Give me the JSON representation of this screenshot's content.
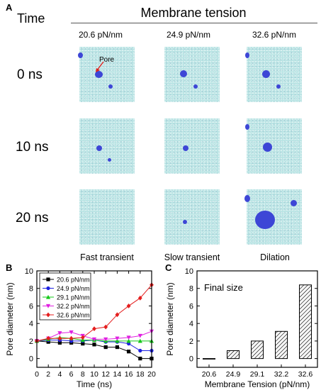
{
  "panel_a": {
    "letter": "A",
    "time_header": "Time",
    "membrane_header": "Membrane tension",
    "tensions": [
      "20.6 pN/nm",
      "24.9 pN/nm",
      "32.6 pN/nm"
    ],
    "rows": [
      "0 ns",
      "10 ns",
      "20 ns"
    ],
    "pore_label": "Pore",
    "outcomes": [
      "Fast transient",
      "Slow transient",
      "Dilation"
    ],
    "colors": {
      "membrane": "#b9e4e4",
      "pore": "#3d46d6",
      "arrow": "#e0201c"
    }
  },
  "panel_b": {
    "letter": "B"
  },
  "panel_c": {
    "letter": "C"
  },
  "chart_data": [
    {
      "type": "line",
      "ylabel": "Pore diameter (nm)",
      "xlabel": "Time (ns)",
      "x": [
        0,
        2,
        4,
        6,
        8,
        10,
        12,
        14,
        16,
        18,
        20
      ],
      "xlim": [
        0,
        20
      ],
      "ylim": [
        -1,
        10
      ],
      "xticks": [
        "0",
        "2",
        "4",
        "6",
        "8",
        "10",
        "12",
        "14",
        "16",
        "18",
        "20"
      ],
      "yticks": [
        "0",
        "2",
        "4",
        "6",
        "8",
        "10"
      ],
      "legend_position": "top-left",
      "series": [
        {
          "name": "20.6 pN/nm",
          "color": "#000000",
          "marker": "square",
          "values": [
            2.0,
            1.9,
            1.8,
            1.8,
            1.7,
            1.6,
            1.3,
            1.3,
            0.8,
            0.0,
            0.0
          ]
        },
        {
          "name": "24.9 pN/nm",
          "color": "#1f22e0",
          "marker": "circle",
          "values": [
            2.0,
            2.1,
            2.1,
            2.0,
            2.0,
            2.1,
            1.9,
            1.9,
            1.7,
            0.9,
            0.9
          ]
        },
        {
          "name": "29.1 pN/nm",
          "color": "#16c81a",
          "marker": "triangle-up",
          "values": [
            2.0,
            2.2,
            2.4,
            2.3,
            2.1,
            2.1,
            2.0,
            2.0,
            2.0,
            2.0,
            2.0
          ]
        },
        {
          "name": "32.2 pN/nm",
          "color": "#e020e0",
          "marker": "triangle-down",
          "values": [
            2.0,
            2.3,
            2.9,
            3.0,
            2.6,
            2.2,
            2.2,
            2.3,
            2.4,
            2.6,
            3.1
          ]
        },
        {
          "name": "32.6 pN/nm",
          "color": "#e41e1e",
          "marker": "diamond",
          "values": [
            2.0,
            2.3,
            2.3,
            2.3,
            2.4,
            3.4,
            3.6,
            5.0,
            6.0,
            6.9,
            8.4
          ]
        }
      ]
    },
    {
      "type": "bar",
      "annotation": "Final size",
      "ylabel": "Pore diameter (nm)",
      "xlabel": "Membrane Tension (pN/nm)",
      "categories": [
        "20.6",
        "24.9",
        "29.1",
        "32.2",
        "32.6"
      ],
      "values": [
        0.0,
        0.9,
        2.0,
        3.1,
        8.4
      ],
      "ylim": [
        -1,
        10
      ],
      "yticks": [
        "0",
        "2",
        "4",
        "6",
        "8",
        "10"
      ],
      "bar_fill": "diagonal-hatch"
    }
  ]
}
